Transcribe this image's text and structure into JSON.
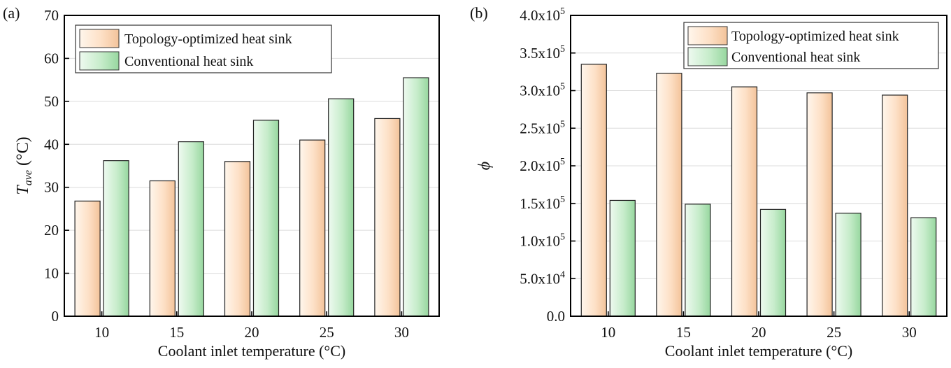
{
  "chart_data": [
    {
      "type": "bar",
      "panel_label": "(a)",
      "categories": [
        "10",
        "15",
        "20",
        "25",
        "30"
      ],
      "series": [
        {
          "name": "Topology-optimized heat sink",
          "values": [
            26.8,
            31.5,
            36.0,
            41.0,
            46.0
          ]
        },
        {
          "name": "Conventional heat sink",
          "values": [
            36.2,
            40.6,
            45.6,
            50.6,
            55.5
          ]
        }
      ],
      "title": "",
      "xlabel": "Coolant inlet temperature (°C)",
      "ylabel_symbol": "T",
      "ylabel_subscript": "ave",
      "ylabel_unit": " (°C)",
      "ylim": [
        0,
        70
      ],
      "yticks": [
        "0",
        "10",
        "20",
        "30",
        "40",
        "50",
        "60",
        "70"
      ],
      "grid": true,
      "legend_position": "top-left"
    },
    {
      "type": "bar",
      "panel_label": "(b)",
      "categories": [
        "10",
        "15",
        "20",
        "25",
        "30"
      ],
      "series": [
        {
          "name": "Topology-optimized heat sink",
          "values": [
            335000,
            323000,
            305000,
            297000,
            294000
          ]
        },
        {
          "name": "Conventional heat sink",
          "values": [
            154000,
            149000,
            142000,
            137000,
            131000
          ]
        }
      ],
      "title": "",
      "xlabel": "Coolant inlet temperature (°C)",
      "ylabel_symbol": "ϕ",
      "ylim": [
        0,
        400000
      ],
      "yticks": [
        {
          "text": "0.0"
        },
        {
          "text": "5.0x10",
          "exp": "4"
        },
        {
          "text": "1.0x10",
          "exp": "5"
        },
        {
          "text": "1.5x10",
          "exp": "5"
        },
        {
          "text": "2.0x10",
          "exp": "5"
        },
        {
          "text": "2.5x10",
          "exp": "5"
        },
        {
          "text": "3.0x10",
          "exp": "5"
        },
        {
          "text": "3.5x10",
          "exp": "5"
        },
        {
          "text": "4.0x10",
          "exp": "5"
        }
      ],
      "grid": true,
      "legend_position": "top-right"
    }
  ],
  "colors": {
    "orange_light": "#fff3e6",
    "orange_dark": "#f5c7a0",
    "green_light": "#e8f8ea",
    "green_dark": "#9fdba6",
    "grid": "#dcdcdc",
    "axis": "#000000"
  }
}
